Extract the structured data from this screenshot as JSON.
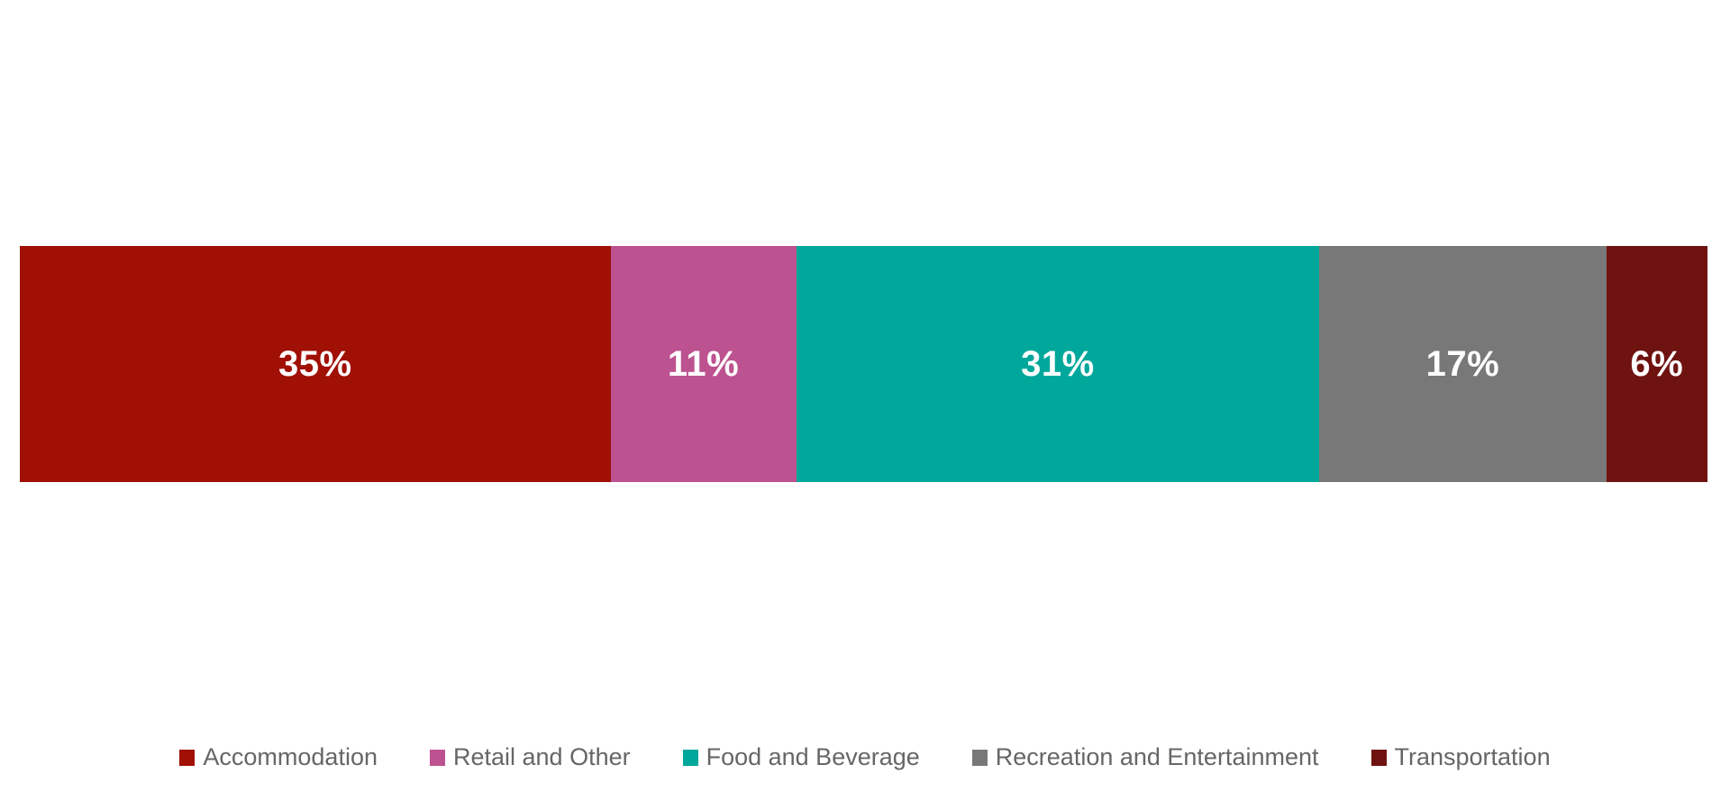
{
  "chart_data": {
    "type": "bar",
    "subtype": "horizontal-stacked-100pct",
    "orientation": "horizontal",
    "stacked": true,
    "title": "",
    "xlabel": "",
    "ylabel": "",
    "grid": false,
    "axis_visible": false,
    "total": 100,
    "unit": "percent",
    "categories": [
      "Accommodation",
      "Retail and Other",
      "Food and Beverage",
      "Recreation and Entertainment",
      "Transportation"
    ],
    "values": [
      35,
      11,
      31,
      17,
      6
    ],
    "data_labels": [
      "35%",
      "11%",
      "31%",
      "17%",
      "6%"
    ],
    "colors": [
      "#A01005",
      "#BD5290",
      "#00A79B",
      "#787878",
      "#6F1311"
    ],
    "data_label_color": "#ffffff",
    "legend_position": "bottom",
    "legend_text_color": "#666666",
    "legend_entries": [
      {
        "label": "Accommodation",
        "color": "#A01005"
      },
      {
        "label": "Retail and Other",
        "color": "#BD5290"
      },
      {
        "label": "Food and Beverage",
        "color": "#00A79B"
      },
      {
        "label": "Recreation and Entertainment",
        "color": "#787878"
      },
      {
        "label": "Transportation",
        "color": "#6F1311"
      }
    ]
  }
}
